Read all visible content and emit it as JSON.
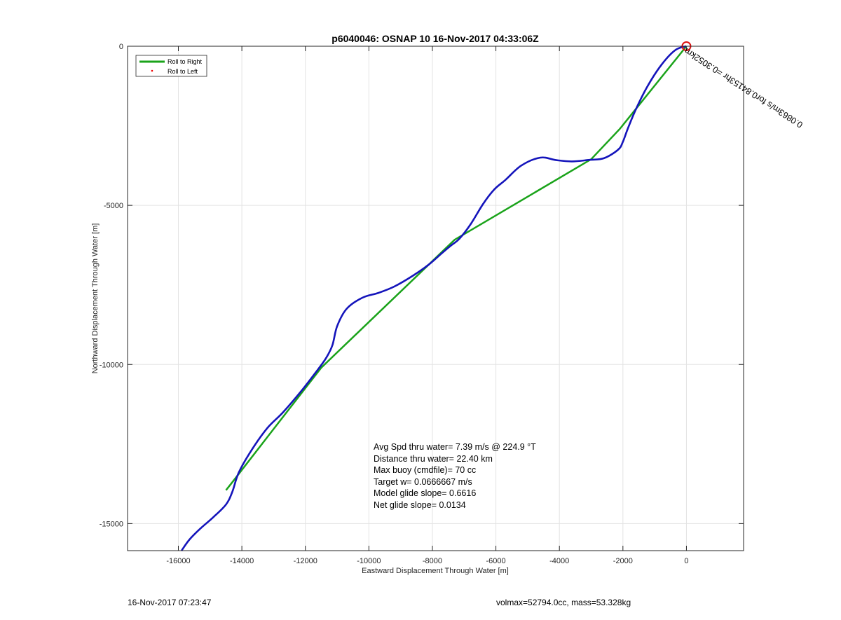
{
  "chart_data": {
    "type": "line",
    "title": "p6040046: OSNAP 10 16-Nov-2017 04:33:06Z",
    "xlabel": "Eastward Displacement Through Water [m]",
    "ylabel": "Northward Displacement Through Water [m]",
    "xlim": [
      -17600,
      1800
    ],
    "ylim": [
      -15850,
      0
    ],
    "xticks": [
      -16000,
      -14000,
      -12000,
      -10000,
      -8000,
      -6000,
      -4000,
      -2000,
      0
    ],
    "xtick_labels": [
      "-16000",
      "-14000",
      "-12000",
      "-10000",
      "-8000",
      "-6000",
      "-4000",
      "-2000",
      "0"
    ],
    "yticks": [
      0,
      -5000,
      -10000,
      -15000
    ],
    "ytick_labels": [
      "0",
      "-5000",
      "-10000",
      "-15000"
    ],
    "grid": true,
    "legend": {
      "placement": "top-left",
      "entries": [
        {
          "label": "Roll to Right",
          "color": "#1aa31a",
          "style": "line"
        },
        {
          "label": "Roll to Left",
          "color": "#ee0000",
          "style": "dot"
        }
      ]
    },
    "series": [
      {
        "style": "green-straight-segments",
        "color": "#1aa31a",
        "x": [
          0,
          -2100,
          -3000,
          -7300,
          -8050,
          -11500,
          -14300,
          -14500
        ],
        "y": [
          0,
          -2600,
          -3550,
          -6080,
          -6800,
          -10100,
          -13700,
          -13950
        ]
      },
      {
        "style": "blue-track",
        "color": "#1414bb",
        "x": [
          0,
          -350,
          -800,
          -1250,
          -1600,
          -1850,
          -2000,
          -2150,
          -2600,
          -3050,
          -3600,
          -4100,
          -4600,
          -5200,
          -5700,
          -6050,
          -6400,
          -6800,
          -7150,
          -7400,
          -7700,
          -8100,
          -8600,
          -9200,
          -9700,
          -10200,
          -10700,
          -11000,
          -11150,
          -11350,
          -11600,
          -12100,
          -12700,
          -13200,
          -13700,
          -14100,
          -14300,
          -14500,
          -14900,
          -15300,
          -15650,
          -15900
        ],
        "y": [
          0,
          -120,
          -600,
          -1300,
          -2000,
          -2600,
          -3000,
          -3250,
          -3520,
          -3570,
          -3620,
          -3580,
          -3500,
          -3750,
          -4200,
          -4500,
          -4950,
          -5600,
          -6050,
          -6250,
          -6500,
          -6850,
          -7200,
          -7550,
          -7750,
          -7900,
          -8250,
          -8800,
          -9400,
          -9800,
          -10150,
          -10800,
          -11500,
          -12000,
          -12700,
          -13400,
          -14000,
          -14400,
          -14800,
          -15150,
          -15500,
          -15850
        ]
      }
    ],
    "marker": {
      "x": 0,
      "y": 0,
      "label": "start-circle",
      "color": "#dd1111"
    },
    "rotated_annotation": "0.0863m/s for0.84153hr =0.3052km",
    "stats_lines": [
      "Avg Spd thru water=  7.39 m/s @ 224.9 °T",
      "Distance thru water= 22.40 km",
      "Max buoy (cmdfile)= 70 cc",
      "Target w= 0.0666667 m/s",
      "Model glide slope= 0.6616",
      "Net glide slope= 0.0134"
    ]
  },
  "footer": {
    "left": "16-Nov-2017 07:23:47",
    "right": "volmax=52794.0cc, mass=53.328kg"
  }
}
